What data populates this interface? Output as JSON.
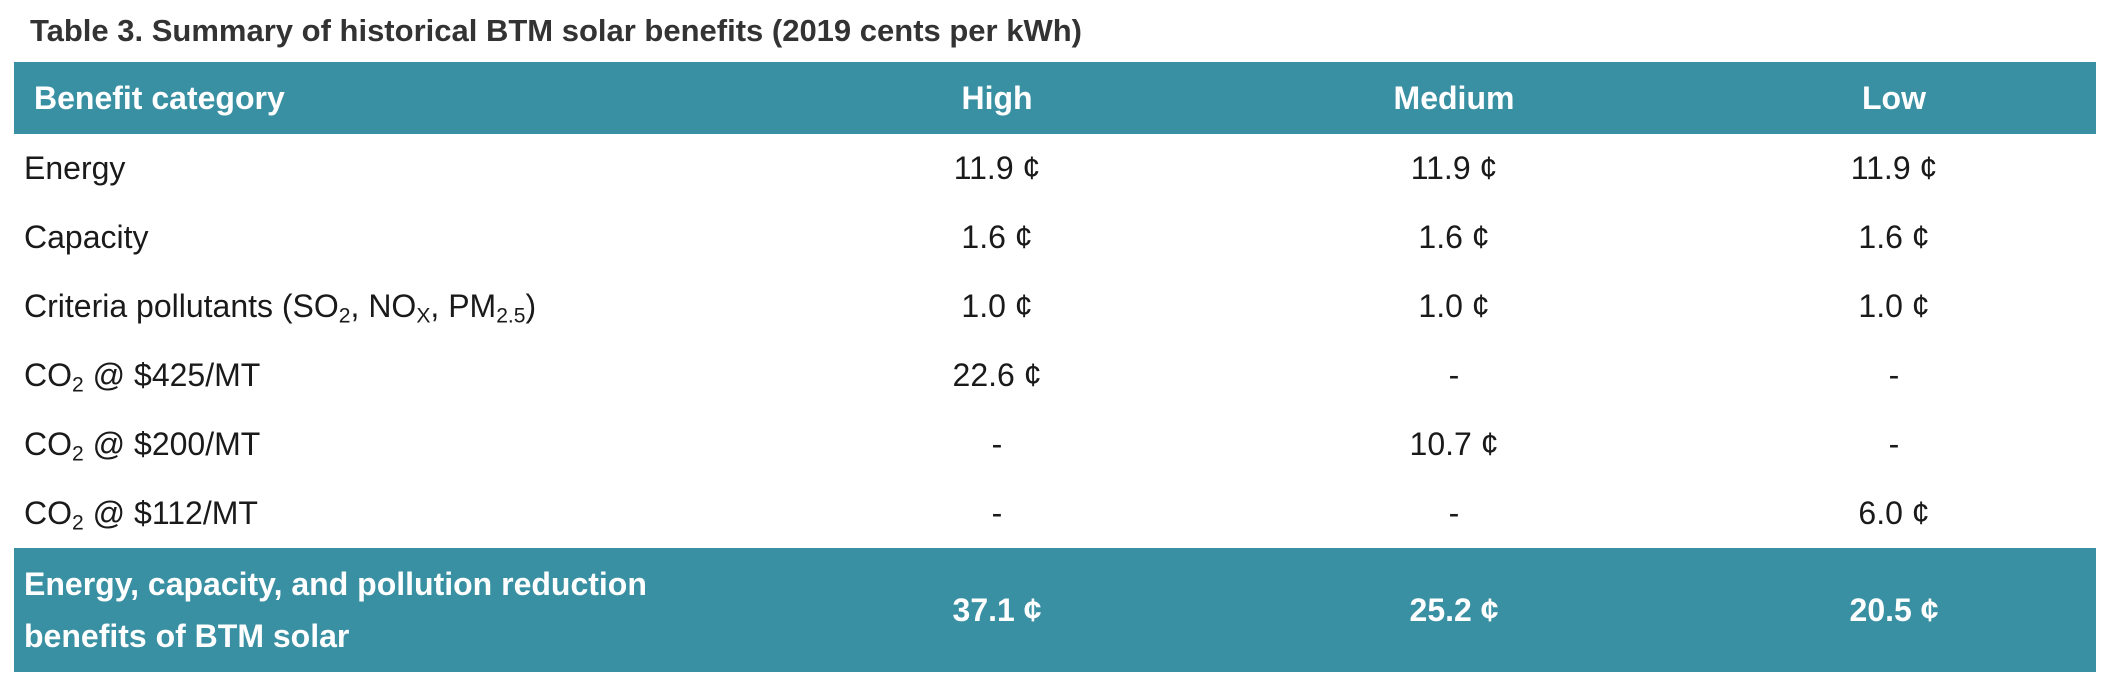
{
  "title": "Table 3. Summary of historical BTM solar benefits (2019 cents per kWh)",
  "header": {
    "category": "Benefit category",
    "high": "High",
    "medium": "Medium",
    "low": "Low"
  },
  "rows": [
    {
      "label": "Energy",
      "high": "11.9 ¢",
      "medium": "11.9 ¢",
      "low": "11.9 ¢"
    },
    {
      "label": "Capacity",
      "high": "1.6 ¢",
      "medium": "1.6 ¢",
      "low": "1.6 ¢"
    },
    {
      "label_prefix": "Criteria pollutants (SO",
      "label_sub1": "2",
      "label_mid1": ", NO",
      "label_sub2": "X",
      "label_mid2": ", PM",
      "label_sub3": "2.5",
      "label_suffix": ")",
      "high": "1.0 ¢",
      "medium": "1.0 ¢",
      "low": "1.0 ¢"
    },
    {
      "label_prefix": "CO",
      "label_sub": "2",
      "label_suffix": " @ $425/MT",
      "high": "22.6 ¢",
      "medium": "-",
      "low": "-"
    },
    {
      "label_prefix": "CO",
      "label_sub": "2",
      "label_suffix": " @ $200/MT",
      "high": "-",
      "medium": "10.7 ¢",
      "low": "-"
    },
    {
      "label_prefix": "CO",
      "label_sub": "2",
      "label_suffix": " @ $112/MT",
      "high": "-",
      "medium": "-",
      "low": "6.0 ¢"
    }
  ],
  "total": {
    "label_line1": "Energy, capacity, and pollution reduction",
    "label_line2": "benefits of BTM solar",
    "high": "37.1 ¢",
    "medium": "25.2 ¢",
    "low": "20.5 ¢"
  },
  "colors": {
    "header_bg": "#3a90a3",
    "header_text": "#ffffff",
    "title_text": "#333333"
  }
}
